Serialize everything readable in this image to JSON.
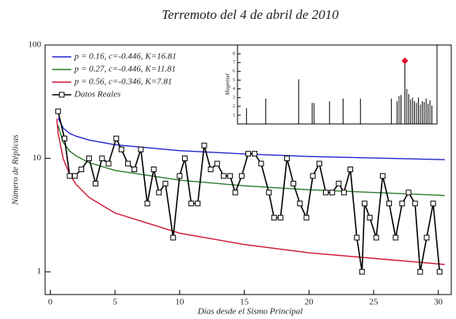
{
  "chart_data": [
    {
      "type": "line",
      "title": "Terremoto del 4 de abril de 2010",
      "xlabel": "Días desde el Sismo Principal",
      "ylabel": "Número de Réplicas",
      "log_y": true,
      "xlim": [
        -0.4,
        31
      ],
      "xticks": [
        0,
        5,
        10,
        15,
        20,
        25,
        30
      ],
      "ylim": [
        0.63,
        100
      ],
      "yticks": [
        1,
        10,
        100
      ],
      "legend": "top-left",
      "series": [
        {
          "name": "p = 0.16, c=-0.446,  K=16.81",
          "color": "#2222cc",
          "x": [
            0.6,
            1,
            1.5,
            2,
            3,
            5,
            10,
            15,
            20,
            30.5
          ],
          "values": [
            22.7,
            18.5,
            16.6,
            15.7,
            14.5,
            13.2,
            11.7,
            10.95,
            10.4,
            9.75
          ]
        },
        {
          "name": "p = 0.27, c=-0.446,  K=11.81",
          "color": "#2a7a2a",
          "x": [
            0.6,
            1,
            1.5,
            2,
            3,
            5,
            10,
            15,
            20,
            30.5
          ],
          "values": [
            19.6,
            13.8,
            11.6,
            10.5,
            9.17,
            7.84,
            6.42,
            5.73,
            5.29,
            4.71
          ]
        },
        {
          "name": "p = 0.56, c=-0.346,  K=7.81",
          "color": "#d01030",
          "x": [
            0.5,
            0.6,
            1,
            1.5,
            2,
            3,
            5,
            10,
            15,
            20,
            30.5
          ],
          "values": [
            22.3,
            16.8,
            9.9,
            7.21,
            5.89,
            4.52,
            3.3,
            2.19,
            1.74,
            1.47,
            1.16
          ]
        },
        {
          "name": "Datos Reales",
          "color": "#000000",
          "markers": true,
          "x": [
            0.6,
            1.1,
            1.5,
            1.9,
            2.4,
            3.0,
            3.5,
            4.0,
            4.5,
            5.1,
            5.5,
            6.0,
            6.5,
            7.0,
            7.5,
            8.0,
            8.4,
            8.9,
            9.5,
            10.0,
            10.4,
            10.9,
            11.4,
            11.9,
            12.4,
            12.9,
            13.4,
            13.9,
            14.3,
            14.8,
            15.3,
            15.8,
            16.3,
            16.9,
            17.3,
            17.8,
            18.3,
            18.8,
            19.3,
            19.8,
            20.3,
            20.8,
            21.3,
            21.8,
            22.3,
            22.7,
            23.2,
            23.7,
            24.1,
            24.3,
            24.7,
            25.2,
            25.7,
            26.2,
            26.7,
            27.2,
            27.7,
            28.2,
            28.6,
            29.1,
            29.6,
            30.1
          ],
          "values": [
            26,
            15,
            7,
            7,
            8,
            10,
            6,
            10,
            9,
            15,
            12,
            9,
            8,
            12,
            4,
            8,
            5,
            6,
            2,
            7,
            10,
            4,
            4,
            13,
            8,
            9,
            7,
            7,
            5,
            7,
            11,
            11,
            9,
            5,
            3,
            3,
            10,
            6,
            4,
            3,
            7,
            9,
            5,
            5,
            6,
            5,
            8,
            2,
            1,
            4,
            3,
            2,
            7,
            4,
            2,
            4,
            5,
            4,
            1,
            2,
            4,
            1
          ]
        }
      ]
    },
    {
      "type": "stem",
      "ylabel": "Magnitud",
      "xlim": [
        0,
        100
      ],
      "ylim": [
        0,
        9
      ],
      "yticks": [
        1,
        2,
        3,
        4,
        5,
        6,
        7,
        8
      ],
      "color": "#000000",
      "peak_color": "#e0102a",
      "x": [
        3,
        13,
        30,
        37,
        38,
        46,
        53,
        62,
        78,
        81,
        82,
        83,
        85,
        86,
        87,
        88,
        89,
        90,
        91,
        92,
        93,
        94,
        95,
        96,
        97,
        98,
        99
      ],
      "values": [
        1.8,
        2.9,
        5.1,
        2.4,
        2.4,
        2.6,
        2.9,
        2.9,
        2.9,
        2.6,
        3.2,
        3.3,
        7.2,
        4.0,
        3.4,
        2.8,
        3.0,
        2.6,
        2.4,
        3.0,
        2.2,
        2.6,
        2.5,
        2.9,
        2.3,
        2.7,
        2.1
      ]
    }
  ]
}
